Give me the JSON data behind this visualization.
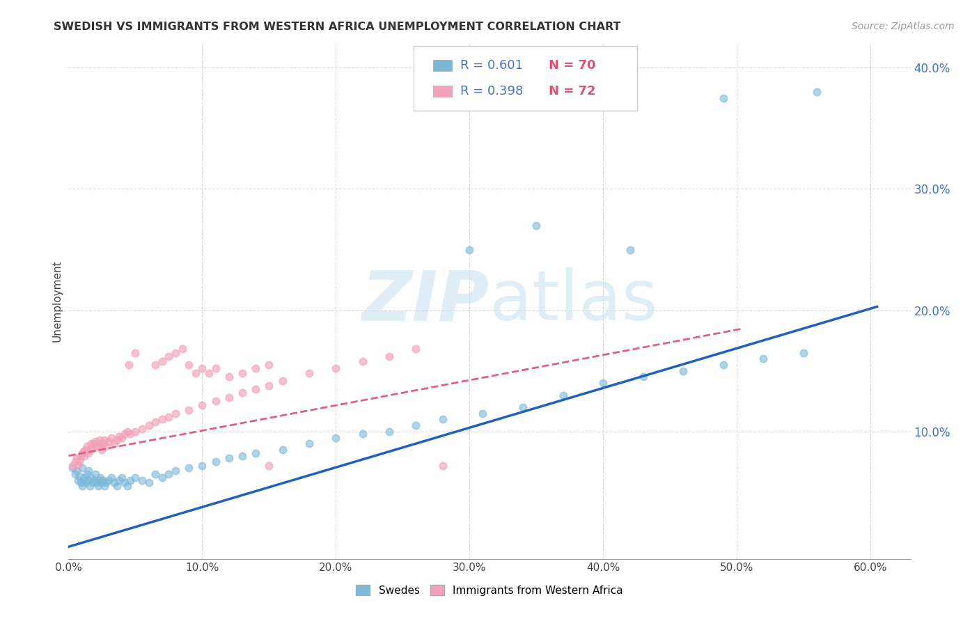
{
  "title": "SWEDISH VS IMMIGRANTS FROM WESTERN AFRICA UNEMPLOYMENT CORRELATION CHART",
  "source": "Source: ZipAtlas.com",
  "ylabel": "Unemployment",
  "xlim": [
    0.0,
    0.63
  ],
  "ylim": [
    -0.005,
    0.42
  ],
  "xticks": [
    0.0,
    0.1,
    0.2,
    0.3,
    0.4,
    0.5,
    0.6
  ],
  "xtick_labels": [
    "0.0%",
    "10.0%",
    "20.0%",
    "30.0%",
    "40.0%",
    "50.0%",
    "60.0%"
  ],
  "yticks": [
    0.1,
    0.2,
    0.3,
    0.4
  ],
  "ytick_labels": [
    "10.0%",
    "20.0%",
    "30.0%",
    "40.0%"
  ],
  "swedes_color": "#7ab8d9",
  "immigrants_color": "#f4a0b8",
  "swedes_line_color": "#2060c0",
  "immigrants_line_color": "#e06080",
  "legend_r_color": "#4472c4",
  "legend_n_color": "#e05070",
  "background_color": "#ffffff",
  "grid_color": "#d8d8d8",
  "watermark_color": "#c5dff0",
  "swedes_x": [
    0.003,
    0.005,
    0.006,
    0.007,
    0.008,
    0.009,
    0.01,
    0.01,
    0.011,
    0.012,
    0.013,
    0.014,
    0.015,
    0.015,
    0.016,
    0.017,
    0.018,
    0.019,
    0.02,
    0.021,
    0.022,
    0.023,
    0.024,
    0.025,
    0.026,
    0.027,
    0.028,
    0.03,
    0.032,
    0.034,
    0.036,
    0.038,
    0.04,
    0.042,
    0.044,
    0.046,
    0.05,
    0.055,
    0.06,
    0.065,
    0.07,
    0.075,
    0.08,
    0.09,
    0.1,
    0.11,
    0.12,
    0.13,
    0.14,
    0.16,
    0.18,
    0.2,
    0.22,
    0.24,
    0.26,
    0.28,
    0.31,
    0.34,
    0.37,
    0.4,
    0.43,
    0.46,
    0.49,
    0.52,
    0.55,
    0.3,
    0.35,
    0.42,
    0.49,
    0.56
  ],
  "swedes_y": [
    0.07,
    0.065,
    0.068,
    0.06,
    0.063,
    0.058,
    0.055,
    0.07,
    0.06,
    0.062,
    0.058,
    0.065,
    0.06,
    0.068,
    0.055,
    0.062,
    0.058,
    0.06,
    0.065,
    0.058,
    0.055,
    0.06,
    0.062,
    0.058,
    0.06,
    0.055,
    0.058,
    0.06,
    0.062,
    0.058,
    0.055,
    0.06,
    0.062,
    0.058,
    0.055,
    0.06,
    0.062,
    0.06,
    0.058,
    0.065,
    0.062,
    0.065,
    0.068,
    0.07,
    0.072,
    0.075,
    0.078,
    0.08,
    0.082,
    0.085,
    0.09,
    0.095,
    0.098,
    0.1,
    0.105,
    0.11,
    0.115,
    0.12,
    0.13,
    0.14,
    0.145,
    0.15,
    0.155,
    0.16,
    0.165,
    0.25,
    0.27,
    0.25,
    0.375,
    0.38
  ],
  "immigrants_x": [
    0.003,
    0.005,
    0.006,
    0.007,
    0.008,
    0.009,
    0.01,
    0.011,
    0.012,
    0.013,
    0.014,
    0.015,
    0.016,
    0.017,
    0.018,
    0.019,
    0.02,
    0.021,
    0.022,
    0.023,
    0.024,
    0.025,
    0.026,
    0.027,
    0.028,
    0.03,
    0.032,
    0.034,
    0.036,
    0.038,
    0.04,
    0.042,
    0.044,
    0.046,
    0.05,
    0.055,
    0.06,
    0.065,
    0.07,
    0.075,
    0.08,
    0.09,
    0.1,
    0.11,
    0.12,
    0.13,
    0.14,
    0.15,
    0.16,
    0.18,
    0.2,
    0.22,
    0.24,
    0.26,
    0.065,
    0.07,
    0.075,
    0.08,
    0.085,
    0.09,
    0.095,
    0.1,
    0.105,
    0.11,
    0.28,
    0.12,
    0.13,
    0.14,
    0.15,
    0.045,
    0.05,
    0.15
  ],
  "immigrants_y": [
    0.072,
    0.075,
    0.078,
    0.073,
    0.076,
    0.08,
    0.082,
    0.084,
    0.08,
    0.085,
    0.088,
    0.082,
    0.085,
    0.09,
    0.086,
    0.09,
    0.092,
    0.088,
    0.09,
    0.093,
    0.088,
    0.085,
    0.09,
    0.093,
    0.088,
    0.092,
    0.095,
    0.09,
    0.093,
    0.096,
    0.095,
    0.098,
    0.1,
    0.098,
    0.1,
    0.102,
    0.105,
    0.108,
    0.11,
    0.112,
    0.115,
    0.118,
    0.122,
    0.125,
    0.128,
    0.132,
    0.135,
    0.138,
    0.142,
    0.148,
    0.152,
    0.158,
    0.162,
    0.168,
    0.155,
    0.158,
    0.162,
    0.165,
    0.168,
    0.155,
    0.148,
    0.152,
    0.148,
    0.152,
    0.072,
    0.145,
    0.148,
    0.152,
    0.155,
    0.155,
    0.165,
    0.072
  ],
  "title_fontsize": 11.5,
  "axis_label_fontsize": 11,
  "tick_fontsize": 11,
  "source_fontsize": 10,
  "marker_size": 55,
  "marker_lw": 1.2,
  "swedes_line_x": [
    0.0,
    0.605
  ],
  "swedes_line_y": [
    0.005,
    0.203
  ],
  "immigrants_line_x": [
    0.0,
    0.505
  ],
  "immigrants_line_y": [
    0.08,
    0.185
  ]
}
